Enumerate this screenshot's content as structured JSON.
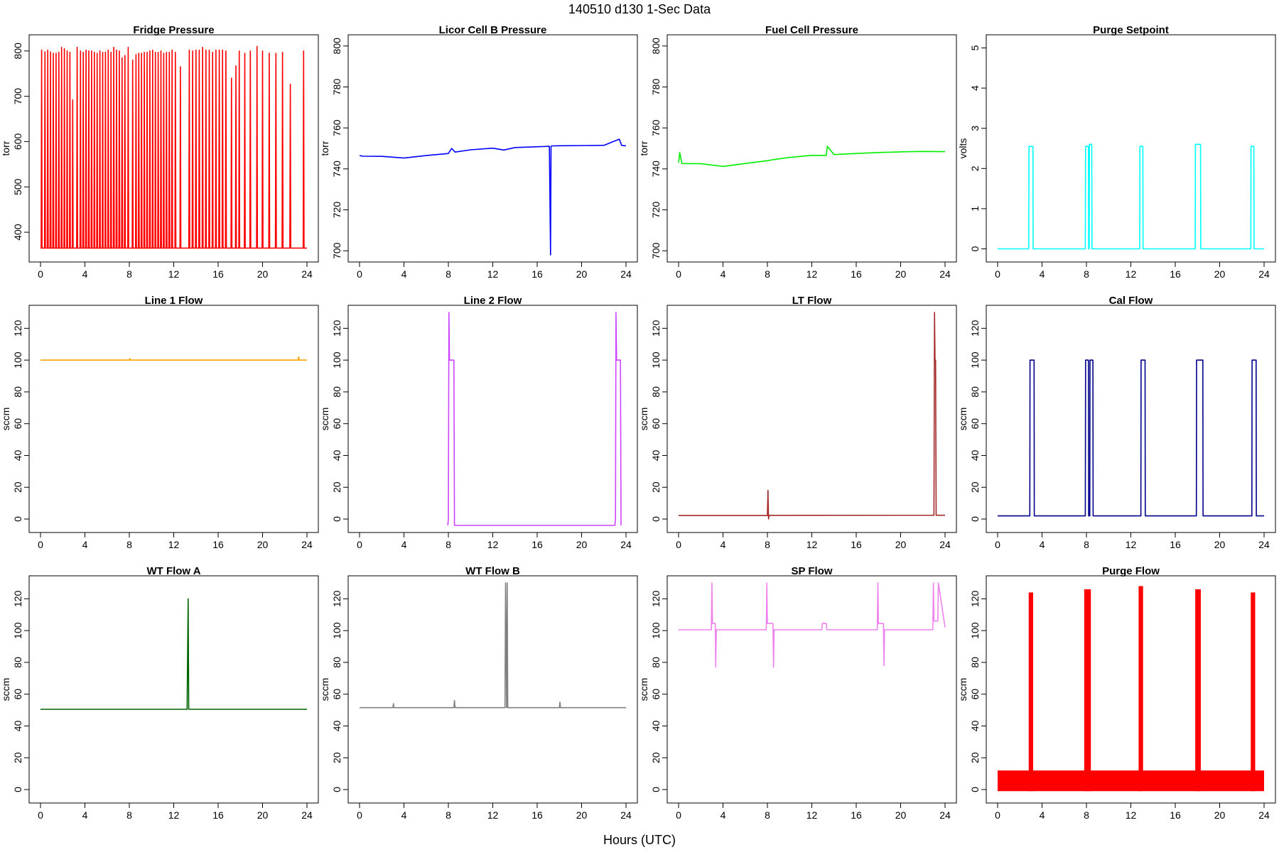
{
  "figure": {
    "title": "140510   d130   1-Sec Data",
    "xlabel": "Hours (UTC)"
  },
  "chart_data": [
    {
      "type": "line",
      "title": "Fridge Pressure",
      "ylabel": "torr",
      "color": "#ff0000",
      "xlim": [
        0,
        24
      ],
      "ylim": [
        350,
        820
      ],
      "yticks": [
        400,
        500,
        600,
        700,
        800
      ],
      "xticks": [
        0,
        4,
        8,
        12,
        16,
        20,
        24
      ],
      "baseline": 365,
      "spikes": [
        [
          0.1,
          802
        ],
        [
          0.4,
          798
        ],
        [
          0.65,
          802
        ],
        [
          0.9,
          798
        ],
        [
          1.15,
          795
        ],
        [
          1.4,
          795
        ],
        [
          1.65,
          797
        ],
        [
          1.9,
          808
        ],
        [
          2.15,
          805
        ],
        [
          2.4,
          800
        ],
        [
          2.65,
          797
        ],
        [
          2.9,
          692
        ],
        [
          3.3,
          808
        ],
        [
          3.6,
          800
        ],
        [
          3.85,
          797
        ],
        [
          4.1,
          802
        ],
        [
          4.35,
          800
        ],
        [
          4.6,
          800
        ],
        [
          4.85,
          797
        ],
        [
          5.1,
          795
        ],
        [
          5.35,
          800
        ],
        [
          5.6,
          797
        ],
        [
          5.85,
          797
        ],
        [
          6.1,
          802
        ],
        [
          6.35,
          797
        ],
        [
          6.6,
          808
        ],
        [
          6.85,
          802
        ],
        [
          7.1,
          800
        ],
        [
          7.35,
          785
        ],
        [
          7.6,
          790
        ],
        [
          7.9,
          808
        ],
        [
          8.3,
          780
        ],
        [
          8.6,
          792
        ],
        [
          8.85,
          795
        ],
        [
          9.1,
          795
        ],
        [
          9.35,
          797
        ],
        [
          9.6,
          797
        ],
        [
          9.85,
          800
        ],
        [
          10.1,
          802
        ],
        [
          10.35,
          797
        ],
        [
          10.6,
          797
        ],
        [
          10.85,
          800
        ],
        [
          11.1,
          795
        ],
        [
          11.35,
          797
        ],
        [
          11.6,
          797
        ],
        [
          11.85,
          802
        ],
        [
          12.15,
          797
        ],
        [
          12.6,
          765
        ],
        [
          13.4,
          802
        ],
        [
          13.7,
          800
        ],
        [
          14.0,
          802
        ],
        [
          14.3,
          802
        ],
        [
          14.6,
          808
        ],
        [
          14.9,
          802
        ],
        [
          15.2,
          802
        ],
        [
          15.5,
          797
        ],
        [
          15.8,
          802
        ],
        [
          16.1,
          802
        ],
        [
          16.4,
          802
        ],
        [
          16.7,
          800
        ],
        [
          17.2,
          740
        ],
        [
          17.6,
          767
        ],
        [
          17.9,
          800
        ],
        [
          18.4,
          795
        ],
        [
          18.9,
          800
        ],
        [
          19.5,
          810
        ],
        [
          20.0,
          800
        ],
        [
          20.6,
          795
        ],
        [
          21.2,
          795
        ],
        [
          21.8,
          797
        ],
        [
          22.5,
          727
        ],
        [
          23.7,
          800
        ]
      ]
    },
    {
      "type": "line",
      "title": "Licor Cell B Pressure",
      "ylabel": "torr",
      "color": "#0000ff",
      "xlim": [
        0,
        24
      ],
      "ylim": [
        698,
        802
      ],
      "yticks": [
        700,
        720,
        740,
        760,
        780,
        800
      ],
      "xticks": [
        0,
        4,
        8,
        12,
        16,
        20,
        24
      ],
      "x": [
        0,
        0.3,
        2,
        4,
        6,
        8,
        8.3,
        8.6,
        10,
        12,
        13,
        14,
        16,
        17.1,
        17.2,
        17.25,
        17.3,
        18,
        20,
        22,
        23.4,
        23.6,
        24
      ],
      "y": [
        746.5,
        746.2,
        746.1,
        745.3,
        746.5,
        747.5,
        750,
        748.2,
        749.3,
        750.1,
        749.2,
        750.4,
        750.8,
        751,
        698,
        751,
        751.2,
        751.3,
        751.4,
        751.5,
        754.5,
        751.5,
        751.2
      ]
    },
    {
      "type": "line",
      "title": "Fuel Cell Pressure",
      "ylabel": "torr",
      "color": "#00ee00",
      "xlim": [
        0,
        24
      ],
      "ylim": [
        698,
        802
      ],
      "yticks": [
        700,
        720,
        740,
        760,
        780,
        800
      ],
      "xticks": [
        0,
        4,
        8,
        12,
        16,
        20,
        24
      ],
      "x": [
        0,
        0.1,
        0.3,
        2,
        4,
        6,
        8,
        8.5,
        10,
        12,
        13.3,
        13.4,
        14,
        16,
        18,
        20,
        22,
        24
      ],
      "y": [
        743,
        748,
        742.6,
        742.5,
        741.2,
        742.6,
        744,
        744.5,
        745.6,
        746.6,
        746.5,
        751,
        747,
        747.5,
        748,
        748.3,
        748.5,
        748.4
      ]
    },
    {
      "type": "line",
      "title": "Purge Setpoint",
      "ylabel": "volts",
      "color": "#00ffff",
      "xlim": [
        0,
        24
      ],
      "ylim": [
        -0.15,
        5.15
      ],
      "yticks": [
        0,
        1,
        2,
        3,
        4,
        5
      ],
      "xticks": [
        0,
        4,
        8,
        12,
        16,
        20,
        24
      ],
      "baseline": 0,
      "pulses": [
        [
          2.8,
          3.2,
          2.55
        ],
        [
          7.9,
          8.2,
          2.55
        ],
        [
          8.25,
          8.5,
          2.6
        ],
        [
          12.8,
          13.1,
          2.55
        ],
        [
          17.8,
          18.3,
          2.6
        ],
        [
          22.8,
          23.1,
          2.55
        ]
      ]
    },
    {
      "type": "line",
      "title": "Line 1 Flow",
      "ylabel": "sccm",
      "color": "#ffa500",
      "xlim": [
        0,
        24
      ],
      "ylim": [
        -4,
        130
      ],
      "yticks": [
        0,
        20,
        40,
        60,
        80,
        100,
        120
      ],
      "xticks": [
        0,
        4,
        8,
        12,
        16,
        20,
        24
      ],
      "x": [
        0,
        8,
        8.05,
        8.1,
        20,
        23.2,
        23.25,
        23.3,
        24
      ],
      "y": [
        100,
        100,
        101,
        100,
        100,
        100,
        102,
        100,
        100
      ]
    },
    {
      "type": "line",
      "title": "Line 2 Flow",
      "ylabel": "sccm",
      "color": "#cc44ff",
      "xlim": [
        0,
        24
      ],
      "ylim": [
        -4,
        130
      ],
      "yticks": [
        0,
        20,
        40,
        60,
        80,
        100,
        120
      ],
      "xticks": [
        0,
        4,
        8,
        12,
        16,
        20,
        24
      ],
      "x": [
        7.95,
        8.0,
        8.05,
        8.1,
        8.5,
        8.55,
        23.0,
        23.05,
        23.1,
        23.15,
        23.5,
        23.55
      ],
      "y": [
        -4,
        0,
        130,
        100,
        100,
        -4,
        -4,
        0,
        130,
        100,
        100,
        -4
      ]
    },
    {
      "type": "line",
      "title": "LT Flow",
      "ylabel": "sccm",
      "color": "#a52a2a",
      "xlim": [
        0,
        24
      ],
      "ylim": [
        -4,
        130
      ],
      "yticks": [
        0,
        20,
        40,
        60,
        80,
        100,
        120
      ],
      "xticks": [
        0,
        4,
        8,
        12,
        16,
        20,
        24
      ],
      "x": [
        0,
        8.0,
        8.05,
        8.1,
        8.15,
        8.2,
        23.0,
        23.05,
        23.1,
        23.15,
        23.2,
        24
      ],
      "y": [
        2.2,
        2.2,
        18,
        0,
        2.3,
        2.3,
        2.4,
        130,
        100,
        100,
        2.4,
        2.4
      ]
    },
    {
      "type": "line",
      "title": "Cal Flow",
      "ylabel": "sccm",
      "color": "#00008b",
      "xlim": [
        0,
        24
      ],
      "ylim": [
        -4,
        130
      ],
      "yticks": [
        0,
        20,
        40,
        60,
        80,
        100,
        120
      ],
      "xticks": [
        0,
        4,
        8,
        12,
        16,
        20,
        24
      ],
      "baseline": 2,
      "pulses": [
        [
          2.9,
          3.3,
          100
        ],
        [
          7.9,
          8.2,
          100
        ],
        [
          8.3,
          8.6,
          100
        ],
        [
          12.9,
          13.3,
          100
        ],
        [
          17.9,
          18.5,
          100
        ],
        [
          22.9,
          23.3,
          100
        ]
      ]
    },
    {
      "type": "line",
      "title": "WT Flow A",
      "ylabel": "sccm",
      "color": "#006400",
      "xlim": [
        0,
        24
      ],
      "ylim": [
        -4,
        130
      ],
      "yticks": [
        0,
        20,
        40,
        60,
        80,
        100,
        120
      ],
      "xticks": [
        0,
        4,
        8,
        12,
        16,
        20,
        24
      ],
      "x": [
        0,
        13.2,
        13.3,
        13.35,
        24
      ],
      "y": [
        50.5,
        50.5,
        120,
        50.5,
        50.5
      ]
    },
    {
      "type": "line",
      "title": "WT Flow B",
      "ylabel": "sccm",
      "color": "#808080",
      "xlim": [
        0,
        24
      ],
      "ylim": [
        -4,
        130
      ],
      "yticks": [
        0,
        20,
        40,
        60,
        80,
        100,
        120
      ],
      "xticks": [
        0,
        4,
        8,
        12,
        16,
        20,
        24
      ],
      "x": [
        0,
        3.0,
        3.05,
        3.1,
        8.5,
        8.55,
        8.6,
        13.1,
        13.15,
        13.25,
        13.3,
        13.35,
        18,
        18.05,
        18.1,
        20,
        24
      ],
      "y": [
        51.5,
        51.5,
        54,
        51.5,
        51.5,
        56,
        51.5,
        51.5,
        130,
        51.5,
        130,
        51.5,
        51.5,
        55,
        51.5,
        51.5,
        51.5
      ]
    },
    {
      "type": "line",
      "title": "SP Flow",
      "ylabel": "sccm",
      "color": "#ee82ee",
      "xlim": [
        0,
        24
      ],
      "ylim": [
        -4,
        130
      ],
      "yticks": [
        0,
        20,
        40,
        60,
        80,
        100,
        120
      ],
      "xticks": [
        0,
        4,
        8,
        12,
        16,
        20,
        24
      ],
      "x": [
        0,
        2.95,
        3.0,
        3.05,
        3.3,
        3.35,
        3.4,
        7.9,
        7.95,
        8.0,
        8.5,
        8.55,
        8.6,
        12.9,
        12.95,
        13.3,
        13.35,
        17.9,
        17.95,
        18.0,
        18.45,
        18.5,
        18.55,
        22.9,
        22.95,
        23.0,
        23.35,
        23.4,
        24
      ],
      "y": [
        100.5,
        100.5,
        130,
        104.5,
        104.5,
        77,
        100.5,
        100.5,
        130,
        104.5,
        104.5,
        77,
        100.5,
        100.5,
        104.5,
        104.5,
        100.5,
        100.5,
        130,
        104.5,
        104.5,
        78,
        100.5,
        100.5,
        130,
        106,
        106,
        130,
        102
      ]
    },
    {
      "type": "line",
      "title": "Purge Flow",
      "ylabel": "sccm",
      "color": "#ff0000",
      "xlim": [
        0,
        24
      ],
      "ylim": [
        -4,
        130
      ],
      "yticks": [
        0,
        20,
        40,
        60,
        80,
        100,
        120
      ],
      "xticks": [
        0,
        4,
        8,
        12,
        16,
        20,
        24
      ],
      "noise_band": [
        -1,
        12
      ],
      "pulses": [
        [
          2.8,
          3.2,
          124
        ],
        [
          7.8,
          8.4,
          126
        ],
        [
          12.7,
          13.1,
          128
        ],
        [
          17.8,
          18.3,
          126
        ],
        [
          22.8,
          23.2,
          124
        ]
      ]
    }
  ]
}
